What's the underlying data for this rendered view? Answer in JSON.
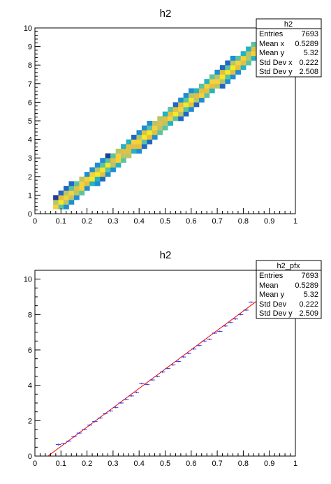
{
  "chart_data": [
    {
      "type": "heatmap",
      "title": "h2",
      "xlim": [
        0,
        1
      ],
      "ylim": [
        0,
        10
      ],
      "x_ticks": [
        "0",
        "0.1",
        "0.2",
        "0.3",
        "0.4",
        "0.5",
        "0.6",
        "0.7",
        "0.8",
        "0.9",
        "1"
      ],
      "y_ticks": [
        "0",
        "1",
        "2",
        "3",
        "4",
        "5",
        "6",
        "7",
        "8",
        "9",
        "10"
      ],
      "palette": "viridis-like (dark blue to yellow)",
      "band": {
        "x_start": 0.07,
        "x_end": 0.85,
        "slope": 10.9,
        "intercept": -0.45,
        "half_width": 0.55,
        "bin_x": 0.02,
        "bin_y": 0.25
      },
      "stats": {
        "name": "h2",
        "rows": [
          {
            "label": "Entries",
            "value": "7693"
          },
          {
            "label": "Mean x",
            "value": "0.5289"
          },
          {
            "label": "Mean y",
            "value": "5.32"
          },
          {
            "label": "Std Dev x",
            "value": "0.222"
          },
          {
            "label": "Std Dev y",
            "value": "2.508"
          }
        ]
      }
    },
    {
      "type": "scatter",
      "title": "h2",
      "xlim": [
        0,
        1
      ],
      "ylim": [
        0,
        10.5
      ],
      "x_ticks": [
        "0",
        "0.1",
        "0.2",
        "0.3",
        "0.4",
        "0.5",
        "0.6",
        "0.7",
        "0.8",
        "0.9",
        "1"
      ],
      "y_ticks": [
        "0",
        "2",
        "4",
        "6",
        "8",
        "10"
      ],
      "profile_points": {
        "x": [
          0.09,
          0.11,
          0.13,
          0.15,
          0.17,
          0.19,
          0.21,
          0.23,
          0.25,
          0.27,
          0.29,
          0.31,
          0.33,
          0.35,
          0.37,
          0.39,
          0.41,
          0.43,
          0.45,
          0.47,
          0.49,
          0.51,
          0.53,
          0.55,
          0.57,
          0.59,
          0.61,
          0.63,
          0.65,
          0.67,
          0.69,
          0.71,
          0.73,
          0.75,
          0.77,
          0.79,
          0.81,
          0.83
        ],
        "y": [
          0.65,
          0.7,
          0.85,
          1.1,
          1.3,
          1.5,
          1.75,
          1.95,
          2.15,
          2.4,
          2.55,
          2.75,
          3.0,
          3.2,
          3.4,
          3.6,
          4.1,
          4.05,
          4.3,
          4.5,
          4.75,
          4.95,
          5.15,
          5.35,
          5.6,
          5.8,
          6.05,
          6.25,
          6.5,
          6.6,
          6.95,
          7.05,
          7.35,
          7.55,
          7.75,
          8.0,
          8.25,
          8.7
        ]
      },
      "fit_line": {
        "x": [
          0.05,
          0.86
        ],
        "y": [
          0.0,
          8.85
        ],
        "color": "#ff0000"
      },
      "stats": {
        "name": "h2_pfx",
        "rows": [
          {
            "label": "Entries",
            "value": "7693"
          },
          {
            "label": "Mean",
            "value": "0.5289"
          },
          {
            "label": "Mean y",
            "value": "5.32"
          },
          {
            "label": "Std Dev",
            "value": "0.222"
          },
          {
            "label": "Std Dev y",
            "value": "2.509"
          }
        ]
      }
    }
  ]
}
